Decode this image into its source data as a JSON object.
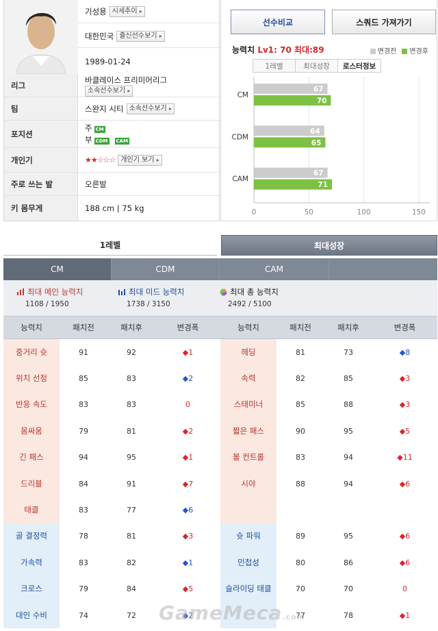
{
  "player": {
    "name": "기성용",
    "name_btn": "시세추이",
    "nation": "대한민국",
    "nation_btn": "출신선수보기",
    "birth": "1989-01-24",
    "rows": [
      {
        "label": "리그",
        "value": "바클레이스 프리미어리그",
        "btn": "소속선수보기"
      },
      {
        "label": "팀",
        "value": "스완지 시티",
        "btn": "소속선수보기"
      },
      {
        "label": "포지션",
        "main_prefix": "주",
        "main_pos": "CM",
        "sub_prefix": "부",
        "sub_pos": [
          "CDM",
          "CAM"
        ]
      },
      {
        "label": "개인기",
        "stars": "★★☆☆☆",
        "btn": "개인기 보기"
      },
      {
        "label": "주로 쓰는 발",
        "value": "오른발"
      },
      {
        "label": "키 몸무게",
        "value": "188 cm | 75 kg"
      }
    ]
  },
  "buttons": {
    "compare": "선수비교",
    "squad": "스쿼드 가져가기"
  },
  "ability": {
    "label": "능력치",
    "lv_text": "Lv1: 70",
    "max_text": "최대:89",
    "legend_before": "변경전",
    "legend_after": "변경후",
    "tabs": [
      "1레벨",
      "최대성장",
      "로스터정보"
    ],
    "active_tab": 2,
    "colors": {
      "before": "#cccccc",
      "after": "#7dc142"
    }
  },
  "chart_data": {
    "type": "bar",
    "orientation": "horizontal",
    "categories": [
      "CM",
      "CDM",
      "CAM"
    ],
    "series": [
      {
        "name": "변경전",
        "values": [
          67,
          64,
          67
        ]
      },
      {
        "name": "변경후",
        "values": [
          70,
          65,
          71
        ]
      }
    ],
    "x_ticks": [
      0,
      50,
      100,
      150
    ],
    "xlim": [
      0,
      160
    ],
    "legend": "top-right"
  },
  "level_tabs": {
    "tab1": "1레벨",
    "tab2": "최대성장"
  },
  "position_tabs": [
    "CM",
    "CDM",
    "CAM",
    ""
  ],
  "summary": {
    "main": {
      "title": "최대 메인 능력치",
      "value": "1108 / 1950"
    },
    "mid": {
      "title": "최대 미드 능력치",
      "value": "1738 / 3150"
    },
    "total": {
      "title": "최대 총 능력치",
      "value": "2492 / 5100"
    }
  },
  "table": {
    "headers": [
      "능력치",
      "패치전",
      "패치후",
      "변경폭",
      "능력치",
      "패치전",
      "패치후",
      "변경폭"
    ],
    "rows": [
      {
        "l": {
          "n": "중거리 슛",
          "a": "91",
          "b": "92",
          "d": "◆1",
          "dc": "up",
          "t": "r"
        },
        "r": {
          "n": "헤딩",
          "a": "81",
          "b": "73",
          "d": "◆8",
          "dc": "down",
          "t": "r"
        }
      },
      {
        "l": {
          "n": "위치 선정",
          "a": "85",
          "b": "83",
          "d": "◆2",
          "dc": "down",
          "t": "r"
        },
        "r": {
          "n": "속력",
          "a": "82",
          "b": "85",
          "d": "◆3",
          "dc": "up",
          "t": "r"
        }
      },
      {
        "l": {
          "n": "반응 속도",
          "a": "83",
          "b": "83",
          "d": "0",
          "dc": "zero",
          "t": "r"
        },
        "r": {
          "n": "스태미너",
          "a": "85",
          "b": "88",
          "d": "◆3",
          "dc": "up",
          "t": "r"
        }
      },
      {
        "l": {
          "n": "몸싸움",
          "a": "79",
          "b": "81",
          "d": "◆2",
          "dc": "up",
          "t": "r"
        },
        "r": {
          "n": "짧은 패스",
          "a": "90",
          "b": "95",
          "d": "◆5",
          "dc": "up",
          "t": "r"
        }
      },
      {
        "l": {
          "n": "긴 패스",
          "a": "94",
          "b": "95",
          "d": "◆1",
          "dc": "up",
          "t": "r"
        },
        "r": {
          "n": "볼 컨트롤",
          "a": "83",
          "b": "94",
          "d": "◆11",
          "dc": "up",
          "t": "r"
        }
      },
      {
        "l": {
          "n": "드리블",
          "a": "84",
          "b": "91",
          "d": "◆7",
          "dc": "up",
          "t": "r"
        },
        "r": {
          "n": "시야",
          "a": "88",
          "b": "94",
          "d": "◆6",
          "dc": "up",
          "t": "r"
        }
      },
      {
        "l": {
          "n": "태클",
          "a": "83",
          "b": "77",
          "d": "◆6",
          "dc": "down",
          "t": "r"
        },
        "r": {
          "n": "",
          "a": "",
          "b": "",
          "d": "",
          "dc": "zero",
          "t": "r"
        }
      },
      {
        "l": {
          "n": "골 결정력",
          "a": "78",
          "b": "81",
          "d": "◆3",
          "dc": "up",
          "t": "b"
        },
        "r": {
          "n": "슛 파워",
          "a": "89",
          "b": "95",
          "d": "◆6",
          "dc": "up",
          "t": "b"
        }
      },
      {
        "l": {
          "n": "가속력",
          "a": "83",
          "b": "82",
          "d": "◆1",
          "dc": "down",
          "t": "b"
        },
        "r": {
          "n": "민첩성",
          "a": "80",
          "b": "86",
          "d": "◆6",
          "dc": "up",
          "t": "b"
        }
      },
      {
        "l": {
          "n": "크로스",
          "a": "79",
          "b": "84",
          "d": "◆5",
          "dc": "up",
          "t": "b"
        },
        "r": {
          "n": "슬라이딩 태클",
          "a": "70",
          "b": "70",
          "d": "0",
          "dc": "zero",
          "t": "b"
        }
      },
      {
        "l": {
          "n": "대인 수비",
          "a": "74",
          "b": "72",
          "d": "◆2",
          "dc": "down",
          "t": "b"
        },
        "r": {
          "n": "",
          "a": "77",
          "b": "78",
          "d": "◆1",
          "dc": "up",
          "t": "b"
        }
      }
    ]
  },
  "watermark": {
    "main": "GameMeca",
    "suffix": ".com"
  }
}
